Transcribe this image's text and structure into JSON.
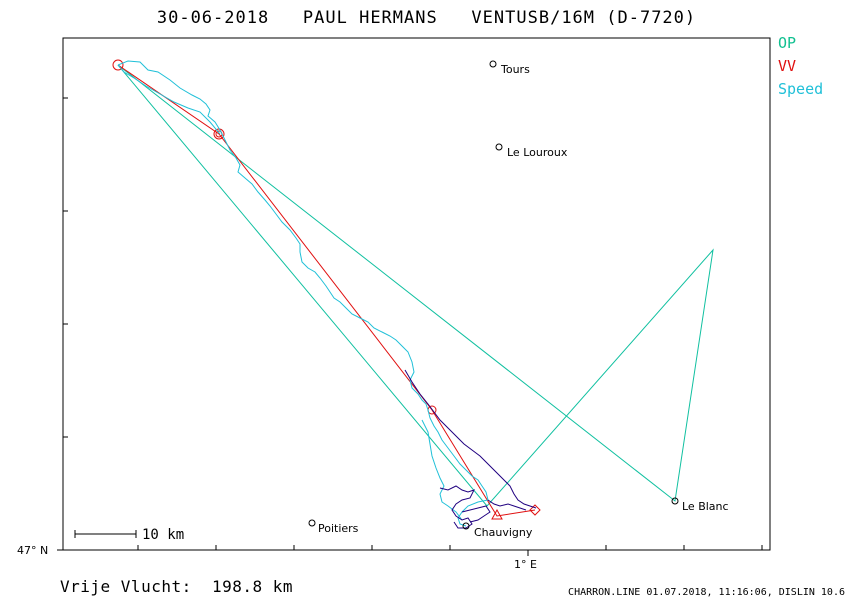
{
  "header": {
    "title": "30-06-2018   PAUL HERMANS   VENTUSB/16M (D-7720)"
  },
  "legend": {
    "items": [
      {
        "label": "OP",
        "color": "#10c090"
      },
      {
        "label": "VV",
        "color": "#e01010"
      },
      {
        "label": "Speed",
        "color": "#20c0d8"
      }
    ]
  },
  "places": [
    {
      "name": "Tours"
    },
    {
      "name": "Le Louroux"
    },
    {
      "name": "Le Blanc"
    },
    {
      "name": "Chauvigny"
    },
    {
      "name": "Poitiers"
    }
  ],
  "axes": {
    "y_label": "47° N",
    "x_label": "1° E"
  },
  "scale_bar": {
    "label": "10 km"
  },
  "footer": {
    "distance_text": "Vrije Vlucht:  198.8 km",
    "info": "CHARRON.LINE 01.07.2018, 11:16:06, DISLIN 10.6"
  },
  "colors": {
    "op": "#10c090",
    "vv": "#e01010",
    "speed": "#20c0d8",
    "track_dark": "#200080"
  }
}
